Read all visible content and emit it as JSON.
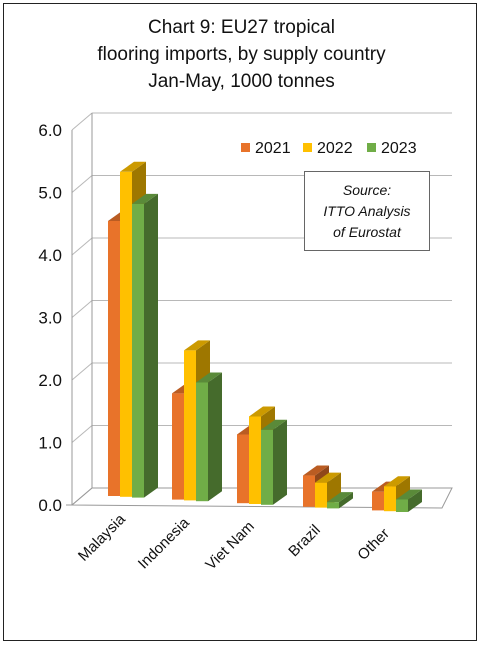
{
  "colors": {
    "2021": "#E8732A",
    "2022": "#FFC000",
    "2023": "#70AD47"
  },
  "source": {
    "line1": "Source:",
    "line2": "ITTO Analysis",
    "line3": "of Eurostat"
  },
  "chart_data": {
    "type": "bar",
    "variant": "3d-clustered-column",
    "title": "Chart 9: EU27 tropical flooring imports, by supply country Jan-May, 1000 tonnes",
    "title_lines": [
      "Chart 9: EU27 tropical",
      "flooring imports, by supply country",
      "Jan-May, 1000 tonnes"
    ],
    "categories": [
      "Malaysia",
      "Indonesia",
      "Viet Nam",
      "Brazil",
      "Other"
    ],
    "series": [
      {
        "name": "2021",
        "values": [
          4.4,
          1.7,
          1.1,
          0.5,
          0.3
        ]
      },
      {
        "name": "2022",
        "values": [
          5.2,
          2.4,
          1.4,
          0.4,
          0.4
        ]
      },
      {
        "name": "2023",
        "values": [
          4.7,
          1.9,
          1.2,
          0.1,
          0.2
        ]
      }
    ],
    "ylim": [
      0,
      6
    ],
    "yticks": [
      "0.0",
      "1.0",
      "2.0",
      "3.0",
      "4.0",
      "5.0",
      "6.0"
    ],
    "grid": true,
    "legend": "top-right",
    "xlabel": "",
    "ylabel": ""
  }
}
